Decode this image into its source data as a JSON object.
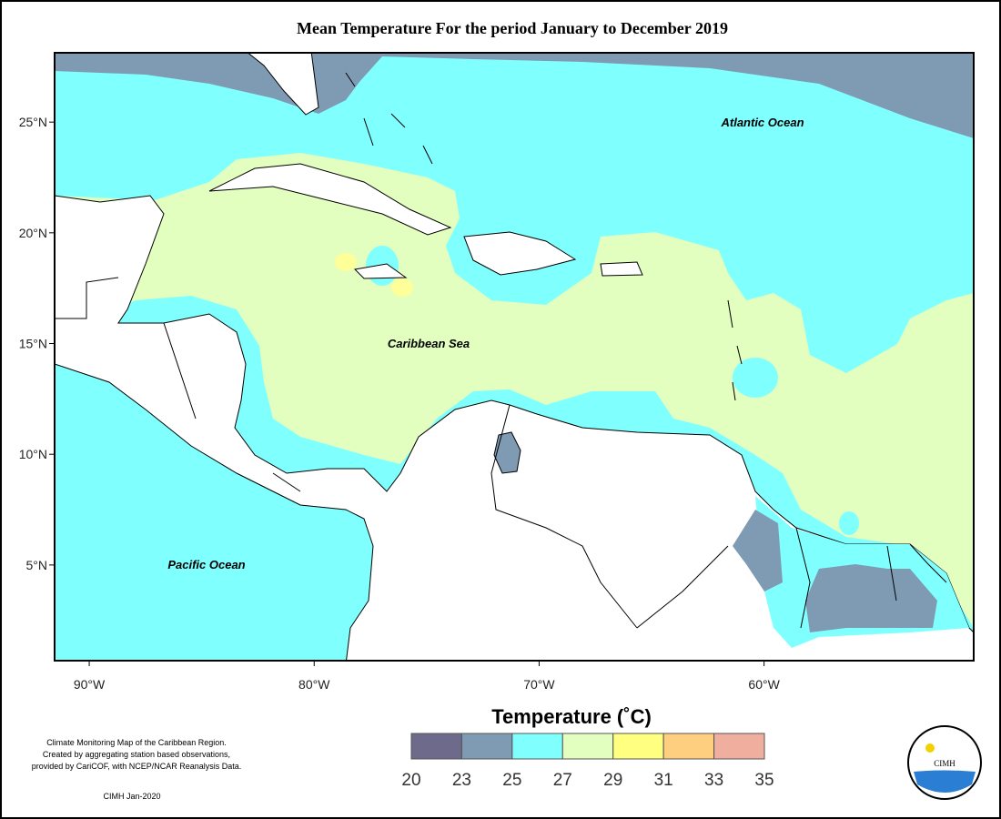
{
  "title": "Mean Temperature For the period January to December 2019",
  "map": {
    "xlim": [
      -91.54,
      -50.68
    ],
    "ylim": [
      0.68,
      28.13
    ],
    "xticks": [
      {
        "value": -90,
        "label": "90°W"
      },
      {
        "value": -80,
        "label": "80°W"
      },
      {
        "value": -70,
        "label": "70°W"
      },
      {
        "value": -60,
        "label": "60°W"
      }
    ],
    "yticks": [
      {
        "value": 25,
        "label": "25°N"
      },
      {
        "value": 20,
        "label": "20°N"
      },
      {
        "value": 15,
        "label": "15°N"
      },
      {
        "value": 10,
        "label": "10°N"
      },
      {
        "value": 5,
        "label": "5°N"
      }
    ],
    "labels": [
      "Atlantic Ocean",
      "Caribbean Sea",
      "Pacific Ocean"
    ]
  },
  "legend": {
    "title": "Temperature (˚C)",
    "bins": [
      20,
      23,
      25,
      27,
      29,
      31,
      33,
      35
    ],
    "colors": [
      "#6e6a8c",
      "#7f9bb3",
      "#80ffff",
      "#e2ffbf",
      "#ffff80",
      "#ffcf80",
      "#f0ae9e"
    ]
  },
  "footnote": [
    "Climate Monitoring Map of the Caribbean Region.",
    "Created by aggregating station based observations,",
    "provided by CariCOF, with NCEP/NCAR Reanalysis Data."
  ],
  "credit": "CIMH Jan-2020",
  "logo": "CIMH"
}
